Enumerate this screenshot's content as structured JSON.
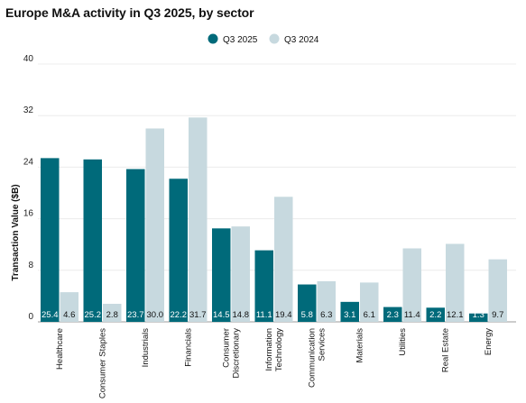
{
  "chart_data": {
    "type": "bar",
    "title": "Europe M&A activity in Q3 2025, by sector",
    "ylabel": "Transaction Value ($B)",
    "xlabel": "",
    "ylim": [
      0,
      40
    ],
    "yticks": [
      0,
      8,
      16,
      24,
      32,
      40
    ],
    "grid": true,
    "legend_position": "top",
    "categories": [
      [
        "Healthcare"
      ],
      [
        "Consumer Staples"
      ],
      [
        "Industrials"
      ],
      [
        "Financials"
      ],
      [
        "Consumer",
        "Discretionary"
      ],
      [
        "Information",
        "Technology"
      ],
      [
        "Communication",
        "Services"
      ],
      [
        "Materials"
      ],
      [
        "Utilities"
      ],
      [
        "Real Estate"
      ],
      [
        "Energy"
      ]
    ],
    "series": [
      {
        "name": "Q3 2025",
        "color": "#006a7a",
        "label_color": "#ffffff",
        "values": [
          25.4,
          25.2,
          23.7,
          22.2,
          14.5,
          11.1,
          5.8,
          3.1,
          2.3,
          2.2,
          1.3
        ]
      },
      {
        "name": "Q3 2024",
        "color": "#c7d9df",
        "label_color": "#111111",
        "values": [
          4.6,
          2.8,
          30.0,
          31.7,
          14.8,
          19.4,
          6.3,
          6.1,
          11.4,
          12.1,
          9.7
        ]
      }
    ]
  }
}
